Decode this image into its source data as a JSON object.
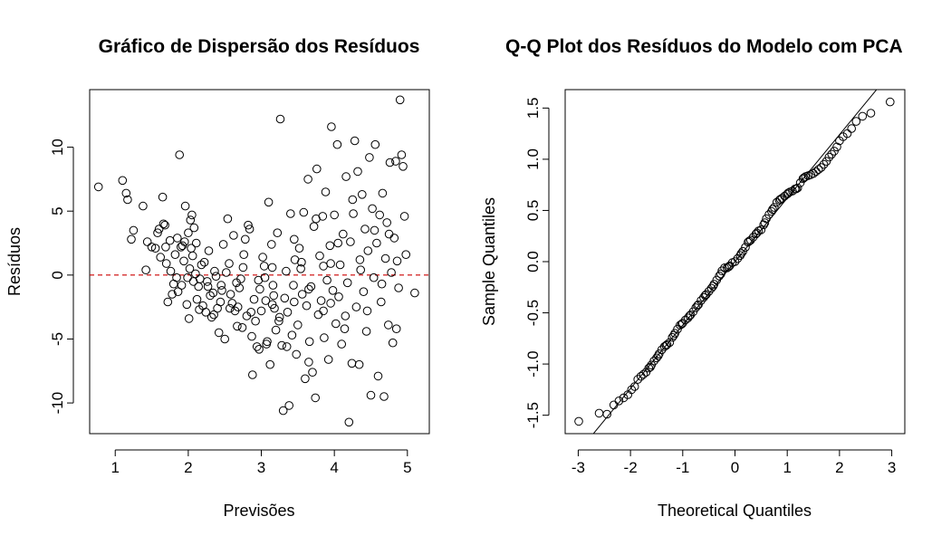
{
  "colors": {
    "points": "#000000",
    "refline_left": "#cc0000",
    "refline_right": "#000000",
    "background": "#ffffff"
  },
  "chart_data": [
    {
      "type": "scatter",
      "title": "Gráfico de Dispersão dos Resíduos",
      "xlabel": "Previsões",
      "ylabel": "Resíduos",
      "xlim": [
        0.65,
        5.3
      ],
      "ylim": [
        -12.4,
        14.5
      ],
      "xticks": [
        1,
        2,
        3,
        4,
        5
      ],
      "yticks": [
        -10,
        -5,
        0,
        5,
        10
      ],
      "grid": false,
      "reference_line": {
        "y": 0,
        "style": "dashed",
        "color": "red"
      },
      "points": [
        [
          0.77,
          6.9
        ],
        [
          1.1,
          7.4
        ],
        [
          1.15,
          6.4
        ],
        [
          1.17,
          5.9
        ],
        [
          1.22,
          2.8
        ],
        [
          1.25,
          3.5
        ],
        [
          1.38,
          5.4
        ],
        [
          1.42,
          0.4
        ],
        [
          1.44,
          2.6
        ],
        [
          1.5,
          2.2
        ],
        [
          1.55,
          2.1
        ],
        [
          1.58,
          3.3
        ],
        [
          1.6,
          3.6
        ],
        [
          1.62,
          1.4
        ],
        [
          1.65,
          6.1
        ],
        [
          1.66,
          4.0
        ],
        [
          1.68,
          3.9
        ],
        [
          1.7,
          0.9
        ],
        [
          1.72,
          -2.1
        ],
        [
          1.75,
          2.7
        ],
        [
          1.78,
          -1.5
        ],
        [
          1.8,
          -0.7
        ],
        [
          1.82,
          1.6
        ],
        [
          1.84,
          -0.2
        ],
        [
          1.85,
          2.9
        ],
        [
          1.86,
          -1.3
        ],
        [
          1.88,
          9.4
        ],
        [
          1.9,
          2.2
        ],
        [
          1.91,
          -0.8
        ],
        [
          1.92,
          2.3
        ],
        [
          1.94,
          1.1
        ],
        [
          1.95,
          2.6
        ],
        [
          1.96,
          5.4
        ],
        [
          1.98,
          -2.3
        ],
        [
          1.99,
          -0.2
        ],
        [
          2.0,
          3.3
        ],
        [
          2.01,
          -3.4
        ],
        [
          2.02,
          0.5
        ],
        [
          2.03,
          4.3
        ],
        [
          2.04,
          2.1
        ],
        [
          2.05,
          4.7
        ],
        [
          2.06,
          1.5
        ],
        [
          2.07,
          -0.5
        ],
        [
          2.08,
          3.7
        ],
        [
          2.1,
          0.1
        ],
        [
          2.12,
          -1.9
        ],
        [
          2.14,
          -0.9
        ],
        [
          2.16,
          -0.3
        ],
        [
          2.18,
          0.8
        ],
        [
          2.2,
          -2.4
        ],
        [
          2.22,
          1.0
        ],
        [
          2.24,
          -2.9
        ],
        [
          2.26,
          -0.5
        ],
        [
          2.28,
          1.9
        ],
        [
          2.3,
          -1.6
        ],
        [
          2.32,
          -3.3
        ],
        [
          2.34,
          -1.4
        ],
        [
          2.36,
          0.3
        ],
        [
          2.38,
          -0.1
        ],
        [
          2.4,
          -2.6
        ],
        [
          2.42,
          -4.5
        ],
        [
          2.44,
          -2.1
        ],
        [
          2.46,
          -1.2
        ],
        [
          2.48,
          2.4
        ],
        [
          2.5,
          -5.0
        ],
        [
          2.52,
          0.2
        ],
        [
          2.54,
          4.4
        ],
        [
          2.56,
          0.9
        ],
        [
          2.58,
          -1.5
        ],
        [
          2.6,
          -2.2
        ],
        [
          2.62,
          3.1
        ],
        [
          2.64,
          -2.8
        ],
        [
          2.66,
          -0.6
        ],
        [
          2.68,
          -2.5
        ],
        [
          2.7,
          -1.0
        ],
        [
          2.72,
          -0.3
        ],
        [
          2.74,
          -4.1
        ],
        [
          2.76,
          1.6
        ],
        [
          2.78,
          2.8
        ],
        [
          2.8,
          -3.2
        ],
        [
          2.82,
          3.9
        ],
        [
          2.84,
          3.6
        ],
        [
          2.86,
          -2.9
        ],
        [
          2.88,
          -7.8
        ],
        [
          2.9,
          -1.9
        ],
        [
          2.92,
          -3.6
        ],
        [
          2.94,
          -5.6
        ],
        [
          2.96,
          -0.4
        ],
        [
          2.98,
          -1.1
        ],
        [
          3.0,
          -2.8
        ],
        [
          3.02,
          1.4
        ],
        [
          3.04,
          0.7
        ],
        [
          3.06,
          -2.0
        ],
        [
          3.08,
          -5.2
        ],
        [
          3.1,
          5.7
        ],
        [
          3.12,
          -7.0
        ],
        [
          3.14,
          2.4
        ],
        [
          3.16,
          -0.8
        ],
        [
          3.18,
          -2.6
        ],
        [
          3.2,
          -4.3
        ],
        [
          3.22,
          3.3
        ],
        [
          3.24,
          -3.6
        ],
        [
          3.26,
          12.2
        ],
        [
          3.28,
          -5.5
        ],
        [
          3.3,
          -10.6
        ],
        [
          3.32,
          -1.8
        ],
        [
          3.34,
          0.3
        ],
        [
          3.36,
          -2.9
        ],
        [
          3.38,
          -10.2
        ],
        [
          3.4,
          4.8
        ],
        [
          3.42,
          -4.7
        ],
        [
          3.44,
          -0.8
        ],
        [
          3.46,
          1.2
        ],
        [
          3.48,
          -6.2
        ],
        [
          3.5,
          -3.9
        ],
        [
          3.52,
          2.1
        ],
        [
          3.54,
          0.5
        ],
        [
          3.56,
          -1.5
        ],
        [
          3.58,
          4.9
        ],
        [
          3.6,
          -8.1
        ],
        [
          3.62,
          -2.4
        ],
        [
          3.64,
          7.5
        ],
        [
          3.66,
          -5.2
        ],
        [
          3.68,
          -0.9
        ],
        [
          3.7,
          -7.6
        ],
        [
          3.72,
          3.8
        ],
        [
          3.74,
          -9.6
        ],
        [
          3.76,
          8.3
        ],
        [
          3.78,
          -3.1
        ],
        [
          3.8,
          1.5
        ],
        [
          3.82,
          -2.0
        ],
        [
          3.84,
          4.6
        ],
        [
          3.86,
          -4.9
        ],
        [
          3.88,
          6.5
        ],
        [
          3.9,
          -0.4
        ],
        [
          3.92,
          -6.6
        ],
        [
          3.94,
          2.3
        ],
        [
          3.96,
          11.6
        ],
        [
          3.98,
          -1.2
        ],
        [
          4.0,
          4.7
        ],
        [
          4.02,
          -3.8
        ],
        [
          4.04,
          10.2
        ],
        [
          4.06,
          -1.7
        ],
        [
          4.08,
          0.8
        ],
        [
          4.1,
          -5.4
        ],
        [
          4.12,
          3.2
        ],
        [
          4.14,
          -4.2
        ],
        [
          4.16,
          7.7
        ],
        [
          4.18,
          -0.6
        ],
        [
          4.2,
          -11.5
        ],
        [
          4.22,
          2.6
        ],
        [
          4.24,
          -6.9
        ],
        [
          4.26,
          4.8
        ],
        [
          4.28,
          10.5
        ],
        [
          4.3,
          -2.5
        ],
        [
          4.32,
          8.1
        ],
        [
          4.34,
          -7.0
        ],
        [
          4.36,
          0.4
        ],
        [
          4.38,
          6.3
        ],
        [
          4.4,
          -1.3
        ],
        [
          4.42,
          3.6
        ],
        [
          4.44,
          -4.4
        ],
        [
          4.46,
          1.9
        ],
        [
          4.48,
          9.2
        ],
        [
          4.5,
          -9.4
        ],
        [
          4.52,
          5.2
        ],
        [
          4.54,
          -0.2
        ],
        [
          4.56,
          10.2
        ],
        [
          4.58,
          2.5
        ],
        [
          4.6,
          -7.9
        ],
        [
          4.62,
          4.7
        ],
        [
          4.64,
          -2.1
        ],
        [
          4.66,
          6.4
        ],
        [
          4.68,
          -9.5
        ],
        [
          4.7,
          1.3
        ],
        [
          4.72,
          4.1
        ],
        [
          4.74,
          -3.9
        ],
        [
          4.76,
          8.8
        ],
        [
          4.78,
          0.2
        ],
        [
          4.8,
          -5.3
        ],
        [
          4.82,
          2.9
        ],
        [
          4.84,
          8.9
        ],
        [
          4.86,
          1.1
        ],
        [
          4.88,
          -1.0
        ],
        [
          4.9,
          13.7
        ],
        [
          4.92,
          9.4
        ],
        [
          4.94,
          8.5
        ],
        [
          4.96,
          4.6
        ],
        [
          4.98,
          1.6
        ],
        [
          5.1,
          -1.4
        ],
        [
          1.69,
          2.2
        ],
        [
          1.76,
          0.3
        ],
        [
          2.11,
          2.5
        ],
        [
          2.27,
          -0.9
        ],
        [
          2.35,
          -3.1
        ],
        [
          2.57,
          -2.6
        ],
        [
          2.67,
          -4.0
        ],
        [
          2.87,
          -4.8
        ],
        [
          2.97,
          -5.8
        ],
        [
          3.07,
          -5.4
        ],
        [
          3.17,
          -1.6
        ],
        [
          3.25,
          -3.3
        ],
        [
          3.35,
          -5.6
        ],
        [
          3.45,
          2.8
        ],
        [
          3.55,
          1.0
        ],
        [
          3.65,
          -6.8
        ],
        [
          3.75,
          4.4
        ],
        [
          3.85,
          -2.8
        ],
        [
          3.95,
          0.9
        ],
        [
          4.05,
          2.5
        ],
        [
          4.15,
          -3.2
        ],
        [
          4.25,
          5.9
        ],
        [
          4.35,
          1.2
        ],
        [
          4.45,
          -2.8
        ],
        [
          4.55,
          3.5
        ],
        [
          4.65,
          -0.7
        ],
        [
          4.75,
          3.2
        ],
        [
          4.85,
          -4.2
        ],
        [
          2.15,
          -2.7
        ],
        [
          2.45,
          -0.8
        ],
        [
          2.75,
          0.6
        ],
        [
          3.05,
          -0.2
        ],
        [
          3.15,
          -2.3
        ],
        [
          3.85,
          0.7
        ],
        [
          3.15,
          0.6
        ],
        [
          3.45,
          -2.1
        ],
        [
          3.65,
          -1.1
        ],
        [
          3.95,
          -2.2
        ]
      ]
    },
    {
      "type": "scatter",
      "title": "Q-Q Plot dos Resíduos do Modelo com PCA",
      "xlabel": "Theoretical Quantiles",
      "ylabel": "Sample Quantiles",
      "xlim": [
        -3.25,
        3.25
      ],
      "ylim": [
        -1.68,
        1.68
      ],
      "xticks": [
        -3,
        -2,
        -1,
        0,
        1,
        2,
        3
      ],
      "yticks": [
        -1.5,
        -1.0,
        -0.5,
        0.0,
        0.5,
        1.0,
        1.5
      ],
      "grid": false,
      "reference_line": {
        "style": "solid",
        "color": "black",
        "intercept": 0.0,
        "slope": 0.62
      },
      "points": [
        [
          -2.99,
          -1.56
        ],
        [
          -2.6,
          -1.48
        ],
        [
          -2.45,
          -1.49
        ],
        [
          -2.32,
          -1.4
        ],
        [
          -2.22,
          -1.36
        ],
        [
          -2.13,
          -1.33
        ],
        [
          -2.05,
          -1.3
        ],
        [
          -1.98,
          -1.25
        ],
        [
          -1.92,
          -1.22
        ],
        [
          -1.86,
          -1.15
        ],
        [
          -1.8,
          -1.12
        ],
        [
          -1.75,
          -1.1
        ],
        [
          -1.7,
          -1.08
        ],
        [
          -1.65,
          -1.04
        ],
        [
          -1.6,
          -1.01
        ],
        [
          -1.55,
          -0.97
        ],
        [
          -1.5,
          -0.94
        ],
        [
          -1.45,
          -0.9
        ],
        [
          -1.4,
          -0.86
        ],
        [
          -1.35,
          -0.83
        ],
        [
          -1.3,
          -0.81
        ],
        [
          -1.25,
          -0.79
        ],
        [
          -1.2,
          -0.74
        ],
        [
          -1.15,
          -0.7
        ],
        [
          -1.1,
          -0.66
        ],
        [
          -1.05,
          -0.62
        ],
        [
          -1.0,
          -0.6
        ],
        [
          -0.95,
          -0.57
        ],
        [
          -0.9,
          -0.55
        ],
        [
          -0.85,
          -0.52
        ],
        [
          -0.8,
          -0.49
        ],
        [
          -0.75,
          -0.45
        ],
        [
          -0.7,
          -0.42
        ],
        [
          -0.65,
          -0.38
        ],
        [
          -0.6,
          -0.35
        ],
        [
          -0.55,
          -0.32
        ],
        [
          -0.5,
          -0.29
        ],
        [
          -0.45,
          -0.26
        ],
        [
          -0.4,
          -0.22
        ],
        [
          -0.35,
          -0.18
        ],
        [
          -0.3,
          -0.14
        ],
        [
          -0.25,
          -0.09
        ],
        [
          -0.2,
          -0.06
        ],
        [
          -0.15,
          -0.06
        ],
        [
          -0.1,
          -0.04
        ],
        [
          -0.05,
          -0.01
        ],
        [
          0.0,
          0.0
        ],
        [
          0.05,
          0.03
        ],
        [
          0.1,
          0.06
        ],
        [
          0.15,
          0.1
        ],
        [
          0.2,
          0.14
        ],
        [
          0.25,
          0.19
        ],
        [
          0.3,
          0.21
        ],
        [
          0.35,
          0.24
        ],
        [
          0.4,
          0.27
        ],
        [
          0.45,
          0.3
        ],
        [
          0.5,
          0.31
        ],
        [
          0.55,
          0.36
        ],
        [
          0.6,
          0.42
        ],
        [
          0.65,
          0.46
        ],
        [
          0.7,
          0.49
        ],
        [
          0.75,
          0.53
        ],
        [
          0.8,
          0.58
        ],
        [
          0.85,
          0.6
        ],
        [
          0.9,
          0.62
        ],
        [
          0.95,
          0.64
        ],
        [
          1.0,
          0.66
        ],
        [
          1.05,
          0.68
        ],
        [
          1.1,
          0.69
        ],
        [
          1.15,
          0.71
        ],
        [
          1.2,
          0.72
        ],
        [
          1.25,
          0.77
        ],
        [
          1.3,
          0.81
        ],
        [
          1.35,
          0.83
        ],
        [
          1.4,
          0.84
        ],
        [
          1.45,
          0.85
        ],
        [
          1.5,
          0.86
        ],
        [
          1.55,
          0.88
        ],
        [
          1.6,
          0.9
        ],
        [
          1.65,
          0.92
        ],
        [
          1.7,
          0.95
        ],
        [
          1.75,
          0.98
        ],
        [
          1.8,
          1.02
        ],
        [
          1.85,
          1.05
        ],
        [
          1.9,
          1.08
        ],
        [
          1.95,
          1.12
        ],
        [
          2.0,
          1.18
        ],
        [
          2.07,
          1.22
        ],
        [
          2.15,
          1.25
        ],
        [
          2.23,
          1.3
        ],
        [
          2.32,
          1.37
        ],
        [
          2.44,
          1.42
        ],
        [
          2.6,
          1.45
        ],
        [
          2.97,
          1.56
        ],
        [
          -1.62,
          -1.03
        ],
        [
          -1.47,
          -0.92
        ],
        [
          -1.32,
          -0.82
        ],
        [
          -1.17,
          -0.72
        ],
        [
          -1.02,
          -0.61
        ],
        [
          -0.87,
          -0.53
        ],
        [
          -0.72,
          -0.43
        ],
        [
          -0.57,
          -0.33
        ],
        [
          -0.42,
          -0.24
        ],
        [
          -0.27,
          -0.12
        ],
        [
          -0.12,
          -0.05
        ],
        [
          0.12,
          0.08
        ],
        [
          0.27,
          0.2
        ],
        [
          0.42,
          0.28
        ],
        [
          0.57,
          0.38
        ],
        [
          0.72,
          0.51
        ],
        [
          0.87,
          0.61
        ],
        [
          1.02,
          0.67
        ],
        [
          1.17,
          0.71
        ],
        [
          1.32,
          0.82
        ]
      ]
    }
  ]
}
